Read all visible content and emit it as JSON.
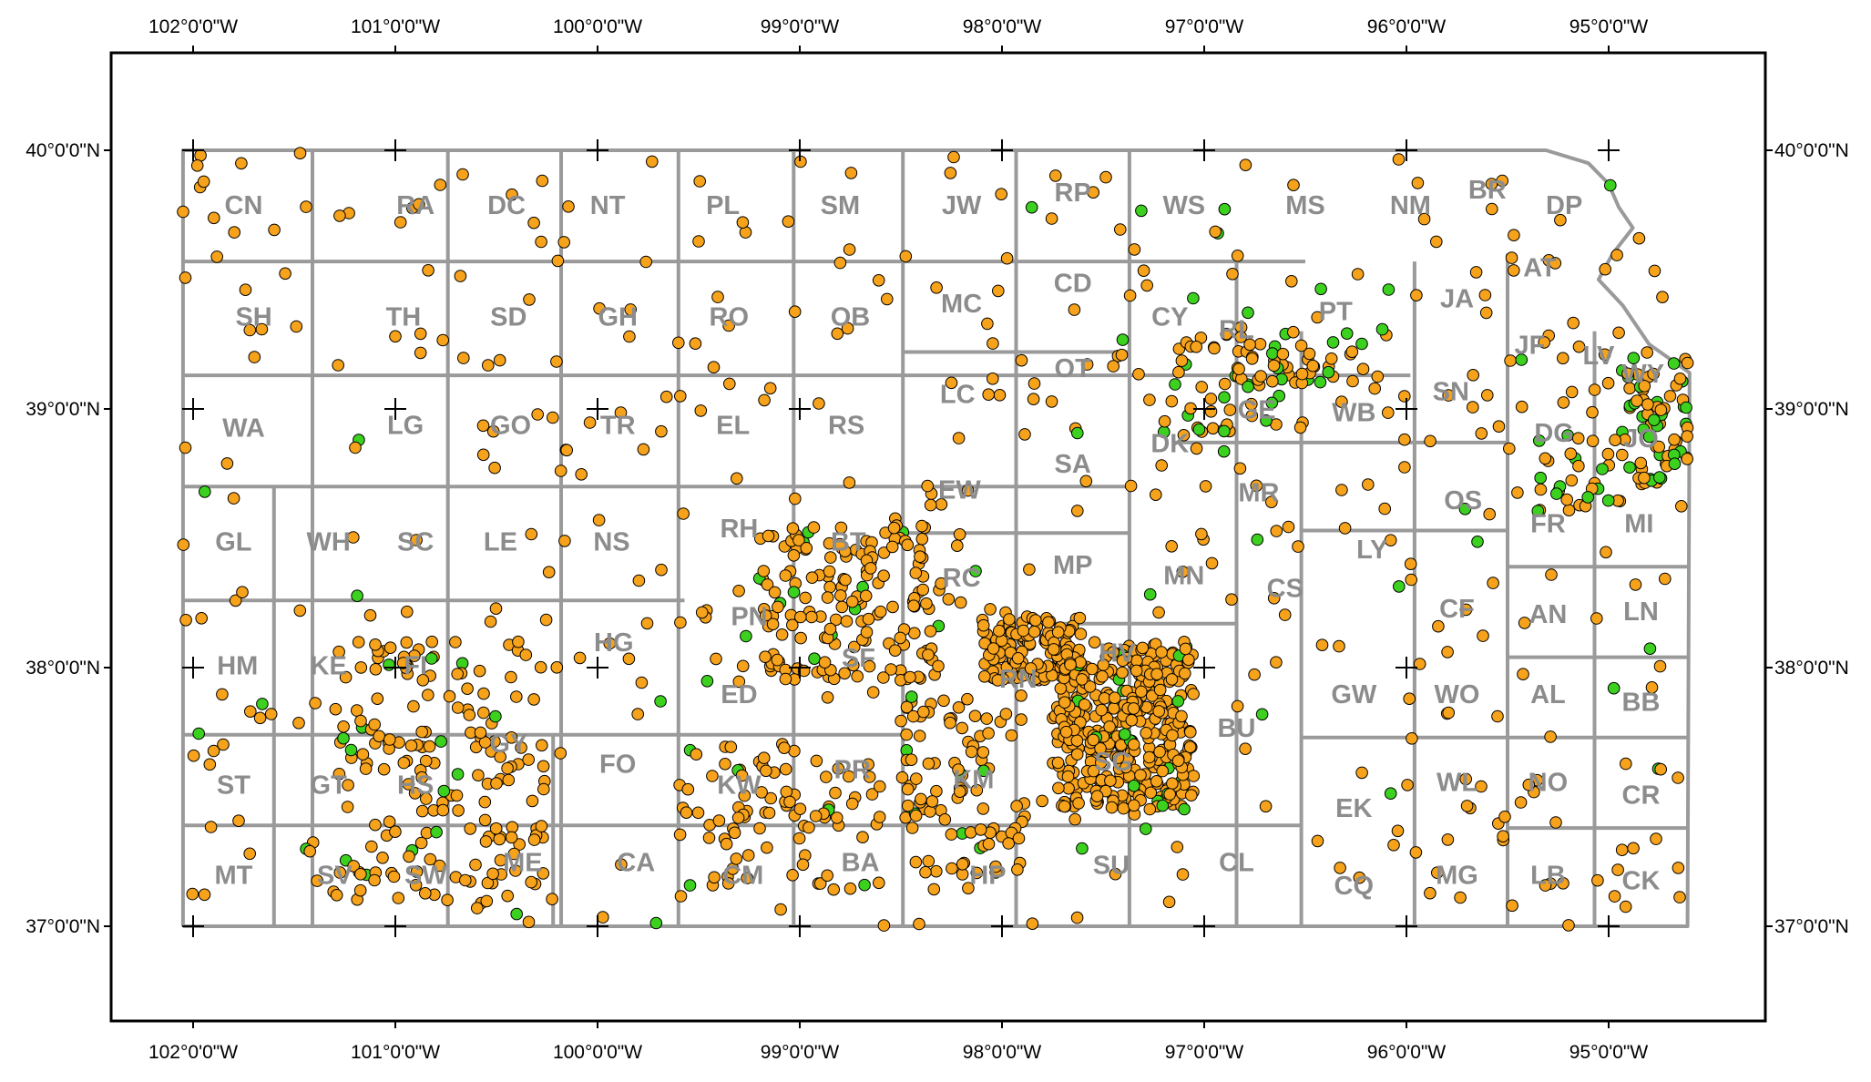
{
  "map": {
    "lon_ticks": [
      "102°0'0\"W",
      "101°0'0\"W",
      "100°0'0\"W",
      "99°0'0\"W",
      "98°0'0\"W",
      "97°0'0\"W",
      "96°0'0\"W",
      "95°0'0\"W"
    ],
    "lon_values": [
      -102,
      -101,
      -100,
      -99,
      -98,
      -97,
      -96,
      -95
    ],
    "lat_ticks": [
      "40°0'0\"N",
      "39°0'0\"N",
      "38°0'0\"N",
      "37°0'0\"N"
    ],
    "lat_values": [
      40,
      39,
      38,
      37
    ],
    "colors": {
      "frame": "#000000",
      "county_line": "#9a9a9a",
      "county_label": "#8c8c8c",
      "orange_point": "#f7a21b",
      "green_point": "#3cd11f",
      "point_outline": "#000000"
    },
    "counties": [
      {
        "code": "CN",
        "lon": -101.75,
        "lat": 39.78
      },
      {
        "code": "RA",
        "lon": -100.9,
        "lat": 39.78
      },
      {
        "code": "DC",
        "lon": -100.45,
        "lat": 39.78
      },
      {
        "code": "NT",
        "lon": -99.95,
        "lat": 39.78
      },
      {
        "code": "PL",
        "lon": -99.38,
        "lat": 39.78
      },
      {
        "code": "SM",
        "lon": -98.8,
        "lat": 39.78
      },
      {
        "code": "JW",
        "lon": -98.2,
        "lat": 39.78
      },
      {
        "code": "RP",
        "lon": -97.65,
        "lat": 39.83
      },
      {
        "code": "WS",
        "lon": -97.1,
        "lat": 39.78
      },
      {
        "code": "MS",
        "lon": -96.5,
        "lat": 39.78
      },
      {
        "code": "NM",
        "lon": -95.98,
        "lat": 39.78
      },
      {
        "code": "BR",
        "lon": -95.6,
        "lat": 39.84
      },
      {
        "code": "DP",
        "lon": -95.22,
        "lat": 39.78
      },
      {
        "code": "SH",
        "lon": -101.7,
        "lat": 39.35
      },
      {
        "code": "TH",
        "lon": -100.96,
        "lat": 39.35
      },
      {
        "code": "SD",
        "lon": -100.44,
        "lat": 39.35
      },
      {
        "code": "GH",
        "lon": -99.9,
        "lat": 39.35
      },
      {
        "code": "RO",
        "lon": -99.35,
        "lat": 39.35
      },
      {
        "code": "OB",
        "lon": -98.75,
        "lat": 39.35
      },
      {
        "code": "MC",
        "lon": -98.2,
        "lat": 39.4
      },
      {
        "code": "CD",
        "lon": -97.65,
        "lat": 39.48
      },
      {
        "code": "CY",
        "lon": -97.17,
        "lat": 39.35
      },
      {
        "code": "RL",
        "lon": -96.84,
        "lat": 39.3
      },
      {
        "code": "PT",
        "lon": -96.35,
        "lat": 39.37
      },
      {
        "code": "JA",
        "lon": -95.75,
        "lat": 39.42
      },
      {
        "code": "AT",
        "lon": -95.34,
        "lat": 39.54
      },
      {
        "code": "JF",
        "lon": -95.39,
        "lat": 39.24
      },
      {
        "code": "LV",
        "lon": -95.05,
        "lat": 39.2
      },
      {
        "code": "WY",
        "lon": -94.83,
        "lat": 39.13
      },
      {
        "code": "WA",
        "lon": -101.75,
        "lat": 38.92
      },
      {
        "code": "LG",
        "lon": -100.95,
        "lat": 38.93
      },
      {
        "code": "GO",
        "lon": -100.43,
        "lat": 38.93
      },
      {
        "code": "TR",
        "lon": -99.9,
        "lat": 38.93
      },
      {
        "code": "EL",
        "lon": -99.33,
        "lat": 38.93
      },
      {
        "code": "RS",
        "lon": -98.77,
        "lat": 38.93
      },
      {
        "code": "LC",
        "lon": -98.22,
        "lat": 39.05
      },
      {
        "code": "OT",
        "lon": -97.65,
        "lat": 39.15
      },
      {
        "code": "SA",
        "lon": -97.65,
        "lat": 38.78
      },
      {
        "code": "DK",
        "lon": -97.17,
        "lat": 38.86
      },
      {
        "code": "GE",
        "lon": -96.74,
        "lat": 38.99
      },
      {
        "code": "WB",
        "lon": -96.26,
        "lat": 38.98
      },
      {
        "code": "SN",
        "lon": -95.78,
        "lat": 39.06
      },
      {
        "code": "DG",
        "lon": -95.27,
        "lat": 38.9
      },
      {
        "code": "JO",
        "lon": -94.84,
        "lat": 38.88
      },
      {
        "code": "EW",
        "lon": -98.21,
        "lat": 38.68
      },
      {
        "code": "MR",
        "lon": -96.73,
        "lat": 38.67
      },
      {
        "code": "OS",
        "lon": -95.72,
        "lat": 38.64
      },
      {
        "code": "FR",
        "lon": -95.3,
        "lat": 38.55
      },
      {
        "code": "MI",
        "lon": -94.85,
        "lat": 38.55
      },
      {
        "code": "GL",
        "lon": -101.8,
        "lat": 38.48
      },
      {
        "code": "WH",
        "lon": -101.33,
        "lat": 38.48
      },
      {
        "code": "SC",
        "lon": -100.9,
        "lat": 38.48
      },
      {
        "code": "LE",
        "lon": -100.48,
        "lat": 38.48
      },
      {
        "code": "NS",
        "lon": -99.93,
        "lat": 38.48
      },
      {
        "code": "RH",
        "lon": -99.3,
        "lat": 38.53
      },
      {
        "code": "BT",
        "lon": -98.76,
        "lat": 38.48
      },
      {
        "code": "RC",
        "lon": -98.2,
        "lat": 38.34
      },
      {
        "code": "MP",
        "lon": -97.65,
        "lat": 38.39
      },
      {
        "code": "MN",
        "lon": -97.1,
        "lat": 38.35
      },
      {
        "code": "CS",
        "lon": -96.6,
        "lat": 38.3
      },
      {
        "code": "LY",
        "lon": -96.17,
        "lat": 38.45
      },
      {
        "code": "CF",
        "lon": -95.75,
        "lat": 38.22
      },
      {
        "code": "AN",
        "lon": -95.3,
        "lat": 38.2
      },
      {
        "code": "LN",
        "lon": -94.84,
        "lat": 38.21
      },
      {
        "code": "HM",
        "lon": -101.78,
        "lat": 38.0
      },
      {
        "code": "KE",
        "lon": -101.33,
        "lat": 38.0
      },
      {
        "code": "FI",
        "lon": -100.9,
        "lat": 38.0
      },
      {
        "code": "HG",
        "lon": -99.92,
        "lat": 38.09
      },
      {
        "code": "PN",
        "lon": -99.25,
        "lat": 38.19
      },
      {
        "code": "SF",
        "lon": -98.71,
        "lat": 38.03
      },
      {
        "code": "RN",
        "lon": -97.92,
        "lat": 37.95
      },
      {
        "code": "HV",
        "lon": -97.43,
        "lat": 38.05
      },
      {
        "code": "GW",
        "lon": -96.26,
        "lat": 37.89
      },
      {
        "code": "WO",
        "lon": -95.75,
        "lat": 37.89
      },
      {
        "code": "AL",
        "lon": -95.3,
        "lat": 37.89
      },
      {
        "code": "BB",
        "lon": -94.84,
        "lat": 37.86
      },
      {
        "code": "GY",
        "lon": -100.44,
        "lat": 37.7
      },
      {
        "code": "FO",
        "lon": -99.9,
        "lat": 37.62
      },
      {
        "code": "ED",
        "lon": -99.3,
        "lat": 37.89
      },
      {
        "code": "PR",
        "lon": -98.74,
        "lat": 37.6
      },
      {
        "code": "KM",
        "lon": -98.14,
        "lat": 37.56
      },
      {
        "code": "SG",
        "lon": -97.45,
        "lat": 37.63
      },
      {
        "code": "BU",
        "lon": -96.84,
        "lat": 37.76
      },
      {
        "code": "ST",
        "lon": -101.8,
        "lat": 37.54
      },
      {
        "code": "GT",
        "lon": -101.33,
        "lat": 37.54
      },
      {
        "code": "HS",
        "lon": -100.9,
        "lat": 37.54
      },
      {
        "code": "KW",
        "lon": -99.3,
        "lat": 37.54
      },
      {
        "code": "WL",
        "lon": -95.75,
        "lat": 37.55
      },
      {
        "code": "NO",
        "lon": -95.3,
        "lat": 37.55
      },
      {
        "code": "CR",
        "lon": -94.84,
        "lat": 37.5
      },
      {
        "code": "EK",
        "lon": -96.26,
        "lat": 37.45
      },
      {
        "code": "MT",
        "lon": -101.8,
        "lat": 37.19
      },
      {
        "code": "SV",
        "lon": -101.3,
        "lat": 37.19
      },
      {
        "code": "SW",
        "lon": -100.85,
        "lat": 37.19
      },
      {
        "code": "ME",
        "lon": -100.37,
        "lat": 37.24
      },
      {
        "code": "CA",
        "lon": -99.81,
        "lat": 37.24
      },
      {
        "code": "CM",
        "lon": -99.28,
        "lat": 37.19
      },
      {
        "code": "BA",
        "lon": -98.7,
        "lat": 37.24
      },
      {
        "code": "HP",
        "lon": -98.07,
        "lat": 37.19
      },
      {
        "code": "SU",
        "lon": -97.46,
        "lat": 37.23
      },
      {
        "code": "CL",
        "lon": -96.84,
        "lat": 37.24
      },
      {
        "code": "CQ",
        "lon": -96.26,
        "lat": 37.15
      },
      {
        "code": "MG",
        "lon": -95.75,
        "lat": 37.19
      },
      {
        "code": "LB",
        "lon": -95.3,
        "lat": 37.19
      },
      {
        "code": "CK",
        "lon": -94.84,
        "lat": 37.17
      }
    ]
  }
}
